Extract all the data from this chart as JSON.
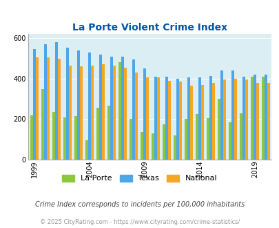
{
  "title": "La Porte Violent Crime Index",
  "subtitle": "Crime Index corresponds to incidents per 100,000 inhabitants",
  "footer": "© 2025 CityRating.com - https://www.cityrating.com/crime-statistics/",
  "years": [
    1999,
    2000,
    2001,
    2002,
    2003,
    2004,
    2005,
    2006,
    2007,
    2008,
    2009,
    2010,
    2011,
    2012,
    2013,
    2014,
    2015,
    2016,
    2017,
    2018,
    2019,
    2020
  ],
  "laporte": [
    220,
    350,
    235,
    210,
    215,
    95,
    255,
    265,
    480,
    200,
    135,
    130,
    175,
    120,
    200,
    225,
    205,
    300,
    185,
    230,
    410,
    410
  ],
  "texas": [
    545,
    570,
    580,
    555,
    540,
    530,
    520,
    510,
    510,
    495,
    450,
    410,
    410,
    400,
    405,
    405,
    415,
    440,
    440,
    410,
    420,
    420
  ],
  "national": [
    505,
    505,
    500,
    465,
    460,
    465,
    470,
    465,
    455,
    430,
    405,
    405,
    390,
    385,
    365,
    370,
    380,
    395,
    400,
    395,
    380,
    380
  ],
  "xtick_years": [
    1999,
    2004,
    2009,
    2014,
    2019
  ],
  "ylim": [
    0,
    620
  ],
  "yticks": [
    0,
    200,
    400,
    600
  ],
  "color_laporte": "#8dc63f",
  "color_texas": "#4da6e8",
  "color_national": "#f5a623",
  "bg_color": "#daeef3",
  "title_color": "#0055aa",
  "subtitle_color": "#444444",
  "footer_color": "#999999"
}
